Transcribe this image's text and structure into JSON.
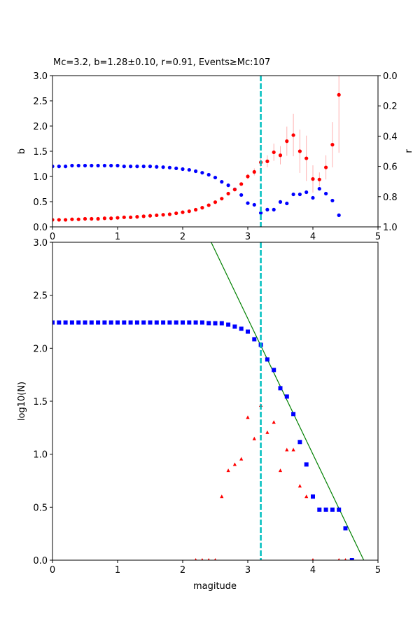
{
  "chart_data": [
    {
      "type": "scatter",
      "title": "Mc=3.2, b=1.28±0.10, r=0.91, Events≥Mc:107",
      "xlabel": "",
      "ylabel": "b",
      "y2label": "r",
      "xlim": [
        0,
        5
      ],
      "ylim": [
        0,
        3
      ],
      "y2lim": [
        1,
        0
      ],
      "xticks": [
        "0",
        "1",
        "2",
        "3",
        "4",
        "5"
      ],
      "yticks": [
        "0.0",
        "0.5",
        "1.0",
        "1.5",
        "2.0",
        "2.5",
        "3.0"
      ],
      "y2ticks": [
        "0.0",
        "0.2",
        "0.4",
        "0.6",
        "0.8",
        "1.0"
      ],
      "x": [
        0,
        0.1,
        0.2,
        0.3,
        0.4,
        0.5,
        0.6,
        0.7,
        0.8,
        0.9,
        1.0,
        1.1,
        1.2,
        1.3,
        1.4,
        1.5,
        1.6,
        1.7,
        1.8,
        1.9,
        2.0,
        2.1,
        2.2,
        2.3,
        2.4,
        2.5,
        2.6,
        2.7,
        2.8,
        2.9,
        3.0,
        3.1,
        3.2,
        3.3,
        3.4,
        3.5,
        3.6,
        3.7,
        3.8,
        3.9,
        4.0,
        4.1,
        4.2,
        4.3,
        4.4
      ],
      "series": [
        {
          "name": "b",
          "axis": "left",
          "color": "#ff0000",
          "values": [
            0.14,
            0.14,
            0.14,
            0.15,
            0.15,
            0.16,
            0.16,
            0.16,
            0.17,
            0.17,
            0.18,
            0.19,
            0.19,
            0.2,
            0.21,
            0.22,
            0.23,
            0.24,
            0.25,
            0.27,
            0.29,
            0.31,
            0.34,
            0.38,
            0.43,
            0.49,
            0.56,
            0.66,
            0.74,
            0.85,
            1.0,
            1.09,
            1.28,
            1.3,
            1.48,
            1.42,
            1.7,
            1.82,
            1.5,
            1.36,
            0.95,
            0.94,
            1.18,
            1.63,
            2.62
          ],
          "errors": [
            0,
            0,
            0,
            0,
            0,
            0,
            0,
            0,
            0,
            0,
            0,
            0,
            0,
            0,
            0,
            0,
            0,
            0,
            0,
            0,
            0,
            0,
            0,
            0,
            0,
            0,
            0,
            0.01,
            0.02,
            0.03,
            0.05,
            0.07,
            0.1,
            0.12,
            0.17,
            0.18,
            0.29,
            0.42,
            0.43,
            0.45,
            0.27,
            0.14,
            0.24,
            0.45,
            1.15
          ]
        },
        {
          "name": "r",
          "axis": "right",
          "color": "#0000ff",
          "values": [
            0.6,
            0.6,
            0.6,
            0.595,
            0.595,
            0.595,
            0.595,
            0.595,
            0.595,
            0.595,
            0.595,
            0.6,
            0.6,
            0.6,
            0.6,
            0.6,
            0.603,
            0.605,
            0.608,
            0.613,
            0.618,
            0.623,
            0.632,
            0.642,
            0.655,
            0.674,
            0.702,
            0.725,
            0.752,
            0.789,
            0.843,
            0.854,
            0.908,
            0.886,
            0.886,
            0.835,
            0.845,
            0.785,
            0.785,
            0.771,
            0.808,
            0.748,
            0.78,
            0.826,
            0.923
          ]
        }
      ],
      "vline": {
        "x": 3.2,
        "color": "#00bfbf"
      }
    },
    {
      "type": "scatter",
      "xlabel": "magitude",
      "ylabel": "log10(N)",
      "xlim": [
        0,
        5
      ],
      "ylim": [
        0,
        3
      ],
      "xticks": [
        "0",
        "1",
        "2",
        "3",
        "4",
        "5"
      ],
      "yticks": [
        "0.0",
        "0.5",
        "1.0",
        "1.5",
        "2.0",
        "2.5",
        "3.0"
      ],
      "series": [
        {
          "name": "cumulative",
          "marker": "square",
          "color": "#0000ff",
          "x": [
            0,
            0.1,
            0.2,
            0.3,
            0.4,
            0.5,
            0.6,
            0.7,
            0.8,
            0.9,
            1.0,
            1.1,
            1.2,
            1.3,
            1.4,
            1.5,
            1.6,
            1.7,
            1.8,
            1.9,
            2.0,
            2.1,
            2.2,
            2.3,
            2.4,
            2.5,
            2.6,
            2.7,
            2.8,
            2.9,
            3.0,
            3.1,
            3.2,
            3.3,
            3.4,
            3.5,
            3.6,
            3.7,
            3.8,
            3.9,
            4.0,
            4.1,
            4.2,
            4.3,
            4.4,
            4.5,
            4.6
          ],
          "values": [
            2.243,
            2.243,
            2.243,
            2.243,
            2.243,
            2.243,
            2.243,
            2.243,
            2.243,
            2.243,
            2.243,
            2.243,
            2.243,
            2.243,
            2.243,
            2.243,
            2.243,
            2.243,
            2.243,
            2.243,
            2.243,
            2.243,
            2.243,
            2.243,
            2.237,
            2.236,
            2.236,
            2.223,
            2.204,
            2.184,
            2.157,
            2.085,
            2.032,
            1.894,
            1.795,
            1.623,
            1.544,
            1.379,
            1.115,
            0.903,
            0.6,
            0.477,
            0.477,
            0.477,
            0.477,
            0.301,
            0
          ]
        },
        {
          "name": "non-cumulative",
          "marker": "triangle",
          "color": "#ff0000",
          "x": [
            2.2,
            2.3,
            2.4,
            2.5,
            2.6,
            2.7,
            2.8,
            2.9,
            3.0,
            3.1,
            3.2,
            3.3,
            3.4,
            3.5,
            3.6,
            3.7,
            3.8,
            3.9,
            4.0,
            4.4,
            4.5
          ],
          "values": [
            0,
            0,
            0,
            0,
            0.6,
            0.845,
            0.903,
            0.954,
            1.346,
            1.146,
            1.46,
            1.204,
            1.301,
            0.845,
            1.041,
            1.041,
            0.699,
            0.6,
            0,
            0,
            0
          ]
        },
        {
          "name": "fit",
          "type": "line",
          "color": "#008000",
          "a": 6.12,
          "b": 1.28
        }
      ],
      "vline": {
        "x": 3.2,
        "color": "#00bfbf"
      }
    }
  ]
}
